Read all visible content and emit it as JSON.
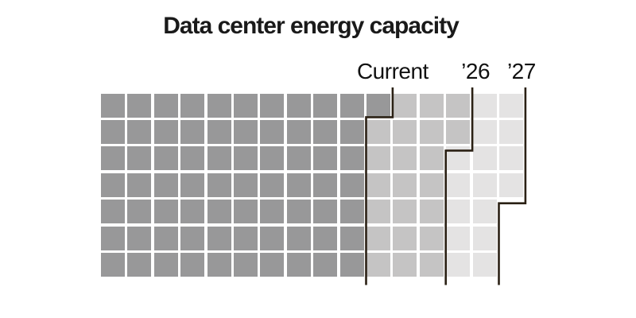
{
  "title": "Data center energy capacity",
  "chart_data": {
    "type": "waffle",
    "title": "Data center energy capacity",
    "grid": {
      "rows": 7,
      "cols": 16,
      "total_cells": 112,
      "fill_order": "column-major, top-to-bottom, left-to-right"
    },
    "milestones": [
      {
        "label": "Current",
        "cumulative_units": 71,
        "square_color": "#989899"
      },
      {
        "label": "’26",
        "cumulative_units": 93,
        "square_color": "#c5c4c4"
      },
      {
        "label": "’27",
        "cumulative_units": 109,
        "square_color": "#e4e3e3"
      }
    ],
    "boundary_line_color": "#2b2115",
    "label_text_color": "#111111",
    "title_color": "#1a1a1a",
    "background": "#ffffff",
    "legend_position": "labels above stepped boundary lines"
  }
}
